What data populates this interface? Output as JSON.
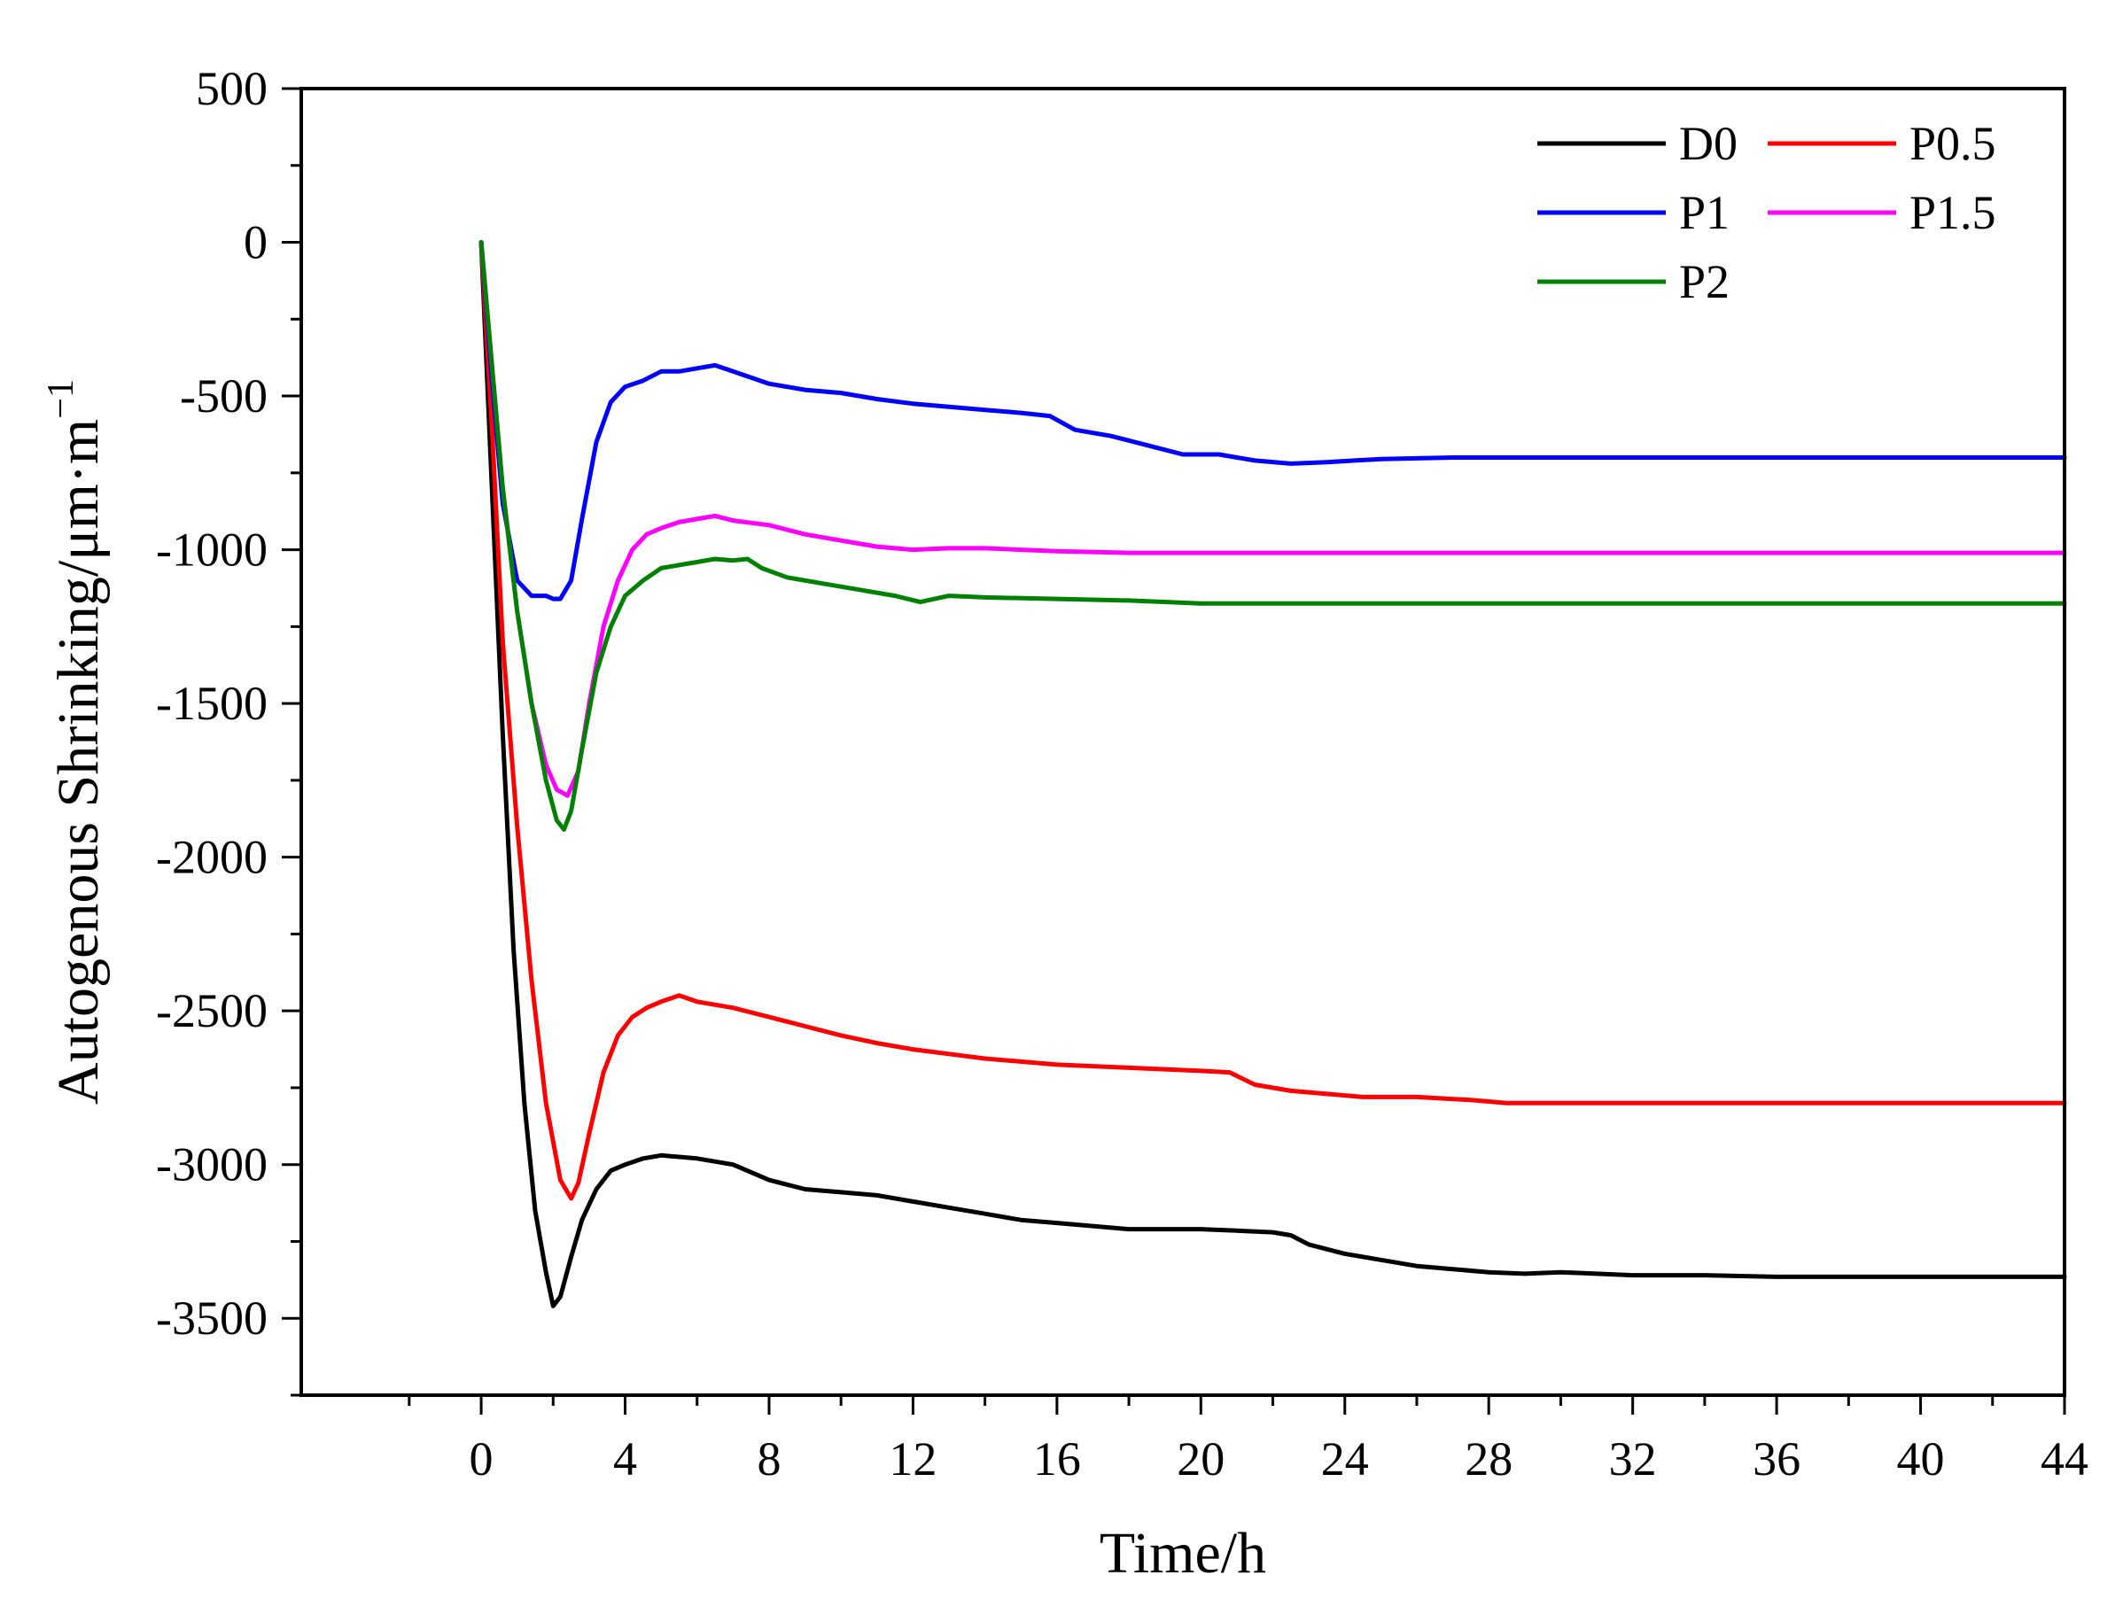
{
  "chart_data": {
    "type": "line",
    "title": "",
    "xlabel": "Time/h",
    "ylabel_main": "Autogenous Shrinking/μm·m",
    "ylabel_sup": "−1",
    "xlim": [
      -5,
      44
    ],
    "ylim": [
      -3750,
      500
    ],
    "xticks": [
      0,
      4,
      8,
      12,
      16,
      20,
      24,
      28,
      32,
      36,
      40,
      44
    ],
    "yticks": [
      500,
      0,
      -500,
      -1000,
      -1500,
      -2000,
      -2500,
      -3000,
      -3500
    ],
    "xtick_labels": [
      "0",
      "4",
      "8",
      "12",
      "16",
      "20",
      "24",
      "28",
      "32",
      "36",
      "40",
      "44"
    ],
    "ytick_labels": [
      "500",
      "0",
      "-500",
      "-1000",
      "-1500",
      "-2000",
      "-2500",
      "-3000",
      "-3500"
    ],
    "legend_position": "top-right",
    "series": [
      {
        "name": "D0",
        "color": "#000000",
        "x": [
          0,
          0.3,
          0.6,
          0.9,
          1.2,
          1.5,
          1.8,
          2.0,
          2.2,
          2.5,
          2.8,
          3.2,
          3.6,
          4.0,
          4.5,
          5.0,
          6.0,
          7.0,
          8.0,
          9.0,
          10.0,
          11.0,
          12.0,
          13.0,
          14.0,
          15.0,
          16.0,
          17.0,
          18.0,
          19.0,
          20.0,
          21.0,
          22.0,
          22.5,
          23.0,
          24.0,
          25.0,
          26.0,
          27.0,
          28.0,
          29.0,
          30.0,
          31.0,
          32.0,
          34.0,
          36.0,
          38.0,
          40.0,
          42.0,
          44.0
        ],
        "values": [
          0,
          -800,
          -1600,
          -2300,
          -2800,
          -3150,
          -3350,
          -3460,
          -3430,
          -3300,
          -3180,
          -3080,
          -3020,
          -3000,
          -2980,
          -2970,
          -2980,
          -3000,
          -3050,
          -3080,
          -3090,
          -3100,
          -3120,
          -3140,
          -3160,
          -3180,
          -3190,
          -3200,
          -3210,
          -3210,
          -3210,
          -3215,
          -3220,
          -3230,
          -3260,
          -3290,
          -3310,
          -3330,
          -3340,
          -3350,
          -3355,
          -3350,
          -3355,
          -3360,
          -3360,
          -3365,
          -3365,
          -3365,
          -3365,
          -3365
        ]
      },
      {
        "name": "P0.5",
        "color": "#ff0000",
        "x": [
          0,
          0.3,
          0.6,
          1.0,
          1.4,
          1.8,
          2.2,
          2.5,
          2.7,
          3.0,
          3.4,
          3.8,
          4.2,
          4.6,
          5.0,
          5.5,
          6.0,
          7.0,
          8.0,
          9.0,
          10.0,
          11.0,
          12.0,
          13.0,
          14.0,
          15.0,
          16.0,
          17.0,
          18.0,
          19.0,
          20.0,
          20.8,
          21.5,
          22.5,
          23.5,
          24.5,
          26.0,
          27.5,
          28.5,
          30.0,
          32.0,
          36.0,
          40.0,
          44.0
        ],
        "values": [
          0,
          -600,
          -1300,
          -1900,
          -2400,
          -2800,
          -3050,
          -3110,
          -3060,
          -2900,
          -2700,
          -2580,
          -2520,
          -2490,
          -2470,
          -2450,
          -2470,
          -2490,
          -2520,
          -2550,
          -2580,
          -2605,
          -2625,
          -2640,
          -2655,
          -2665,
          -2675,
          -2680,
          -2685,
          -2690,
          -2695,
          -2700,
          -2740,
          -2760,
          -2770,
          -2780,
          -2780,
          -2790,
          -2800,
          -2800,
          -2800,
          -2800,
          -2800,
          -2800
        ]
      },
      {
        "name": "P1",
        "color": "#0000ff",
        "x": [
          0,
          0.3,
          0.6,
          1.0,
          1.4,
          1.8,
          2.0,
          2.2,
          2.5,
          2.8,
          3.2,
          3.6,
          4.0,
          4.5,
          5.0,
          5.5,
          6.0,
          6.5,
          7.0,
          8.0,
          9.0,
          10.0,
          11.0,
          12.0,
          13.0,
          14.0,
          15.0,
          15.8,
          16.5,
          17.5,
          18.5,
          19.5,
          20.5,
          21.5,
          22.5,
          23.5,
          25.0,
          27.0,
          30.0,
          36.0,
          44.0
        ],
        "values": [
          0,
          -450,
          -850,
          -1100,
          -1150,
          -1150,
          -1160,
          -1160,
          -1100,
          -900,
          -650,
          -520,
          -470,
          -450,
          -420,
          -420,
          -410,
          -400,
          -420,
          -460,
          -480,
          -490,
          -510,
          -525,
          -535,
          -545,
          -555,
          -565,
          -610,
          -630,
          -660,
          -690,
          -690,
          -710,
          -720,
          -715,
          -705,
          -700,
          -700,
          -700,
          -700
        ]
      },
      {
        "name": "P1.5",
        "color": "#ff00ff",
        "x": [
          0,
          0.3,
          0.6,
          1.0,
          1.4,
          1.8,
          2.1,
          2.4,
          2.7,
          3.0,
          3.4,
          3.8,
          4.2,
          4.6,
          5.0,
          5.5,
          6.0,
          6.5,
          7.0,
          8.0,
          9.0,
          10.0,
          11.0,
          12.0,
          13.0,
          14.0,
          15.0,
          16.0,
          18.0,
          20.0,
          24.0,
          30.0,
          36.0,
          44.0
        ],
        "values": [
          0,
          -400,
          -800,
          -1200,
          -1500,
          -1700,
          -1780,
          -1800,
          -1720,
          -1500,
          -1250,
          -1100,
          -1000,
          -950,
          -930,
          -910,
          -900,
          -890,
          -905,
          -920,
          -950,
          -970,
          -990,
          -1000,
          -995,
          -995,
          -1000,
          -1005,
          -1010,
          -1010,
          -1010,
          -1010,
          -1010,
          -1010
        ]
      },
      {
        "name": "P2",
        "color": "#008000",
        "x": [
          0,
          0.3,
          0.6,
          1.0,
          1.4,
          1.8,
          2.1,
          2.3,
          2.5,
          2.8,
          3.2,
          3.6,
          4.0,
          4.5,
          5.0,
          5.5,
          6.0,
          6.5,
          7.0,
          7.4,
          7.8,
          8.5,
          9.5,
          10.5,
          11.5,
          12.2,
          13.0,
          14.0,
          16.0,
          18.0,
          20.0,
          24.0,
          30.0,
          36.0,
          44.0
        ],
        "values": [
          0,
          -400,
          -800,
          -1200,
          -1500,
          -1750,
          -1880,
          -1910,
          -1850,
          -1650,
          -1400,
          -1250,
          -1150,
          -1100,
          -1060,
          -1050,
          -1040,
          -1030,
          -1035,
          -1030,
          -1060,
          -1090,
          -1110,
          -1130,
          -1150,
          -1170,
          -1150,
          -1155,
          -1160,
          -1165,
          -1175,
          -1175,
          -1175,
          -1175,
          -1175
        ]
      }
    ]
  }
}
